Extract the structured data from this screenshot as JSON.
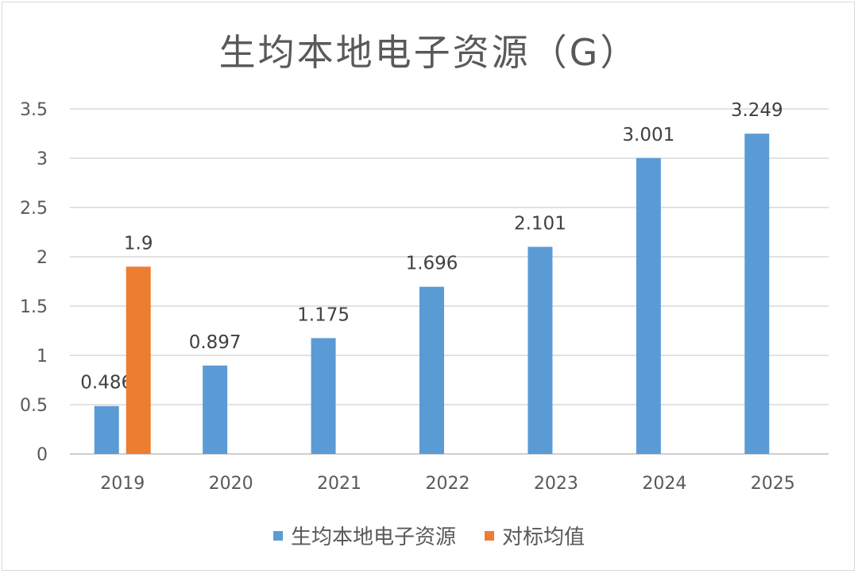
{
  "chart_data": {
    "type": "bar",
    "title": "生均本地电子资源（G）",
    "categories": [
      "2019",
      "2020",
      "2021",
      "2022",
      "2023",
      "2024",
      "2025"
    ],
    "series": [
      {
        "name": "生均本地电子资源",
        "color": "#5b9bd5",
        "values": [
          0.486,
          0.897,
          1.175,
          1.696,
          2.101,
          3.001,
          3.249
        ],
        "labels": [
          "0.486",
          "0.897",
          "1.175",
          "1.696",
          "2.101",
          "3.001",
          "3.249"
        ]
      },
      {
        "name": "对标均值",
        "color": "#ed7d31",
        "values": [
          1.9,
          null,
          null,
          null,
          null,
          null,
          null
        ],
        "labels": [
          "1.9",
          null,
          null,
          null,
          null,
          null,
          null
        ]
      }
    ],
    "ylim": [
      0,
      3.5
    ],
    "yticks": [
      "0",
      "0.5",
      "1",
      "1.5",
      "2",
      "2.5",
      "3",
      "3.5"
    ],
    "grid": true,
    "legend_position": "bottom"
  }
}
